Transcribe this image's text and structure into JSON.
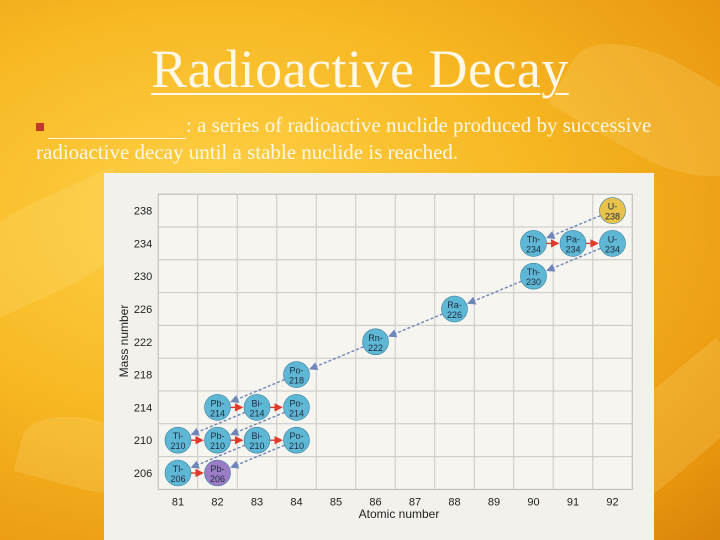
{
  "slide": {
    "title": "Radioactive Decay",
    "definition_term": "",
    "definition_text": ":  a series of radioactive nuclide produced by successive radioactive decay until a stable nuclide is reached."
  },
  "chart_data": {
    "type": "scatter",
    "xlabel": "Atomic number",
    "ylabel": "Mass number",
    "x_ticks": [
      81,
      82,
      83,
      84,
      85,
      86,
      87,
      88,
      89,
      90,
      91,
      92
    ],
    "y_ticks": [
      206,
      210,
      214,
      218,
      222,
      226,
      230,
      234,
      238
    ],
    "grid": true,
    "colors": {
      "unstable": "#5fb7d6",
      "start": "#e8c24a",
      "stable": "#9b7cc6",
      "arrow": "#e03a2a",
      "guide": "#6e86b8"
    },
    "nuclides": [
      {
        "symbol": "U",
        "mass": "238",
        "z": 92,
        "a": 238,
        "kind": "start"
      },
      {
        "symbol": "Th",
        "mass": "234",
        "z": 90,
        "a": 234,
        "kind": "unstable"
      },
      {
        "symbol": "Pa",
        "mass": "234",
        "z": 91,
        "a": 234,
        "kind": "unstable"
      },
      {
        "symbol": "U",
        "mass": "234",
        "z": 92,
        "a": 234,
        "kind": "unstable"
      },
      {
        "symbol": "Th",
        "mass": "230",
        "z": 90,
        "a": 230,
        "kind": "unstable"
      },
      {
        "symbol": "Ra",
        "mass": "226",
        "z": 88,
        "a": 226,
        "kind": "unstable"
      },
      {
        "symbol": "Rn",
        "mass": "222",
        "z": 86,
        "a": 222,
        "kind": "unstable"
      },
      {
        "symbol": "Po",
        "mass": "218",
        "z": 84,
        "a": 218,
        "kind": "unstable"
      },
      {
        "symbol": "Pb",
        "mass": "214",
        "z": 82,
        "a": 214,
        "kind": "unstable"
      },
      {
        "symbol": "Bi",
        "mass": "214",
        "z": 83,
        "a": 214,
        "kind": "unstable"
      },
      {
        "symbol": "Po",
        "mass": "214",
        "z": 84,
        "a": 214,
        "kind": "unstable"
      },
      {
        "symbol": "Tl",
        "mass": "210",
        "z": 81,
        "a": 210,
        "kind": "unstable"
      },
      {
        "symbol": "Pb",
        "mass": "210",
        "z": 82,
        "a": 210,
        "kind": "unstable"
      },
      {
        "symbol": "Bi",
        "mass": "210",
        "z": 83,
        "a": 210,
        "kind": "unstable"
      },
      {
        "symbol": "Po",
        "mass": "210",
        "z": 84,
        "a": 210,
        "kind": "unstable"
      },
      {
        "symbol": "Tl",
        "mass": "206",
        "z": 81,
        "a": 206,
        "kind": "unstable"
      },
      {
        "symbol": "Pb",
        "mass": "206",
        "z": 82,
        "a": 206,
        "kind": "stable"
      }
    ],
    "alpha_decays": [
      [
        92,
        238,
        90,
        234
      ],
      [
        92,
        234,
        90,
        230
      ],
      [
        90,
        230,
        88,
        226
      ],
      [
        88,
        226,
        86,
        222
      ],
      [
        86,
        222,
        84,
        218
      ],
      [
        84,
        218,
        82,
        214
      ],
      [
        84,
        214,
        82,
        210
      ],
      [
        83,
        214,
        81,
        210
      ],
      [
        84,
        210,
        82,
        206
      ],
      [
        83,
        210,
        81,
        206
      ]
    ],
    "beta_decays": [
      [
        90,
        234,
        91,
        234
      ],
      [
        91,
        234,
        92,
        234
      ],
      [
        82,
        214,
        83,
        214
      ],
      [
        83,
        214,
        84,
        214
      ],
      [
        81,
        210,
        82,
        210
      ],
      [
        82,
        210,
        83,
        210
      ],
      [
        83,
        210,
        84,
        210
      ],
      [
        81,
        206,
        82,
        206
      ]
    ]
  }
}
